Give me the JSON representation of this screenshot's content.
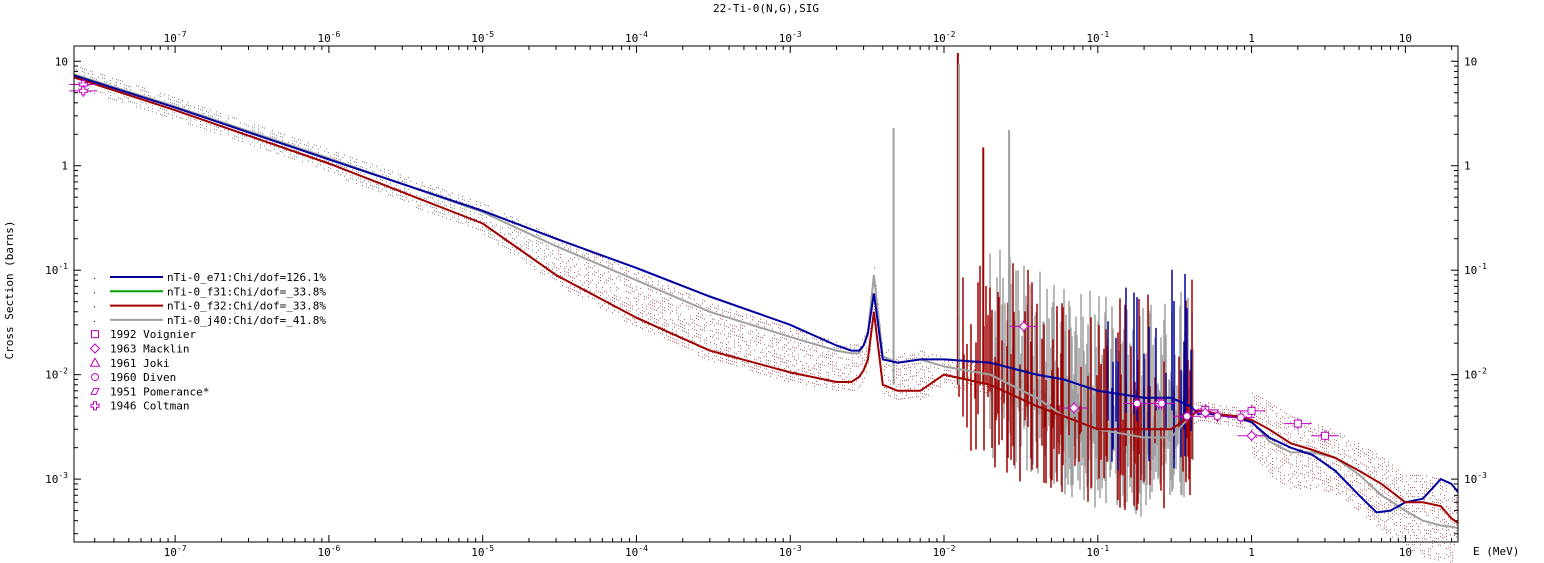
{
  "chart_data": {
    "type": "line",
    "title": "22-Ti-0(N,G),SIG",
    "xlabel": "E (MeV)",
    "ylabel": "Cross Section (barns)",
    "xscale": "log",
    "yscale": "log",
    "xlim": [
      2.2e-08,
      22
    ],
    "ylim": [
      0.00025,
      14
    ],
    "grid": false,
    "legend_position": "left-middle",
    "x_ticks": [
      {
        "value": 1e-07,
        "base": "10",
        "exp": "-7"
      },
      {
        "value": 1e-06,
        "base": "10",
        "exp": "-6"
      },
      {
        "value": 1e-05,
        "base": "10",
        "exp": "-5"
      },
      {
        "value": 0.0001,
        "base": "10",
        "exp": "-4"
      },
      {
        "value": 0.001,
        "base": "10",
        "exp": "-3"
      },
      {
        "value": 0.01,
        "base": "10",
        "exp": "-2"
      },
      {
        "value": 0.1,
        "base": "10",
        "exp": "-1"
      },
      {
        "value": 1,
        "base": "1",
        "exp": ""
      },
      {
        "value": 10,
        "base": "10",
        "exp": ""
      }
    ],
    "y_ticks": [
      {
        "value": 10,
        "base": "10",
        "exp": ""
      },
      {
        "value": 1,
        "base": "1",
        "exp": ""
      },
      {
        "value": 0.1,
        "base": "10",
        "exp": "-1"
      },
      {
        "value": 0.01,
        "base": "10",
        "exp": "-2"
      },
      {
        "value": 0.001,
        "base": "10",
        "exp": "-3"
      }
    ],
    "series": [
      {
        "name": "nTi-0_e71:Chi/dof=126.1%",
        "color": "#0000a0",
        "x": [
          2.2e-08,
          1e-07,
          1e-06,
          1e-05,
          3e-05,
          0.0001,
          0.0003,
          0.001,
          0.002,
          0.0025,
          0.0028,
          0.003,
          0.0032,
          0.0035,
          0.004,
          0.005,
          0.007,
          0.01,
          0.02,
          0.04,
          0.06,
          0.1,
          0.2,
          0.3,
          0.4,
          0.45,
          0.5,
          0.6,
          0.8,
          1.0,
          1.3,
          1.8,
          2.5,
          3.5,
          5,
          6.5,
          8,
          10,
          13,
          17,
          20,
          22
        ],
        "y": [
          7.3,
          3.6,
          1.15,
          0.37,
          0.2,
          0.105,
          0.056,
          0.03,
          0.019,
          0.017,
          0.017,
          0.019,
          0.025,
          0.06,
          0.014,
          0.013,
          0.014,
          0.014,
          0.013,
          0.01,
          0.009,
          0.007,
          0.006,
          0.006,
          0.005,
          0.0042,
          0.0043,
          0.0041,
          0.0039,
          0.0035,
          0.0025,
          0.002,
          0.0017,
          0.0012,
          0.0007,
          0.00048,
          0.0005,
          0.0006,
          0.00065,
          0.001,
          0.0009,
          0.00075
        ]
      },
      {
        "name": "nTi-0_f31:Chi/dof=_33.8%",
        "color": "#00a000",
        "x": [],
        "y": []
      },
      {
        "name": "nTi-0_f32:Chi/dof=_33.8%",
        "color": "#a00000",
        "x": [
          2.2e-08,
          1e-07,
          1e-06,
          1e-05,
          3e-05,
          0.0001,
          0.0003,
          0.001,
          0.002,
          0.0025,
          0.0028,
          0.003,
          0.0032,
          0.0035,
          0.004,
          0.005,
          0.007,
          0.01,
          0.02,
          0.04,
          0.06,
          0.1,
          0.2,
          0.3,
          0.4,
          0.45,
          0.5,
          0.6,
          0.8,
          1.0,
          1.3,
          1.8,
          2.5,
          3.5,
          5,
          7,
          10,
          13,
          17,
          20,
          22
        ],
        "y": [
          7.0,
          3.4,
          1.05,
          0.28,
          0.09,
          0.035,
          0.017,
          0.0105,
          0.0085,
          0.0085,
          0.0095,
          0.011,
          0.014,
          0.04,
          0.008,
          0.007,
          0.007,
          0.01,
          0.008,
          0.005,
          0.004,
          0.003,
          0.003,
          0.003,
          0.004,
          0.0045,
          0.0045,
          0.0042,
          0.004,
          0.0037,
          0.003,
          0.0022,
          0.0019,
          0.0016,
          0.0012,
          0.0009,
          0.0006,
          0.0006,
          0.00055,
          0.00042,
          0.00038
        ]
      },
      {
        "name": "nTi-0_j40:Chi/dof=_41.8%",
        "color": "#a0a0a0",
        "x": [
          2.2e-08,
          1e-07,
          1e-06,
          1e-05,
          3e-05,
          0.0001,
          0.0003,
          0.001,
          0.002,
          0.0025,
          0.0028,
          0.003,
          0.0032,
          0.0035,
          0.004,
          0.005,
          0.007,
          0.01,
          0.02,
          0.04,
          0.06,
          0.1,
          0.2,
          0.3,
          0.4,
          0.45,
          0.5,
          0.6,
          0.8,
          1.0,
          1.3,
          1.8,
          2.5,
          3.5,
          5,
          7,
          10,
          13,
          17,
          20,
          22
        ],
        "y": [
          7.5,
          3.7,
          1.18,
          0.36,
          0.17,
          0.08,
          0.04,
          0.023,
          0.017,
          0.016,
          0.016,
          0.019,
          0.025,
          0.09,
          0.015,
          0.013,
          0.014,
          0.012,
          0.01,
          0.006,
          0.004,
          0.003,
          0.0025,
          0.0025,
          0.004,
          0.0045,
          0.0044,
          0.0042,
          0.004,
          0.0036,
          0.0023,
          0.0018,
          0.0018,
          0.0016,
          0.0011,
          0.0007,
          0.0005,
          0.0004,
          0.00036,
          0.00035,
          0.00034
        ]
      }
    ],
    "experimental": [
      {
        "name": "1992 Voignier",
        "marker": "square",
        "x": [
          0.5,
          1.0,
          2.0,
          3.0
        ],
        "y": [
          0.0046,
          0.0045,
          0.0034,
          0.0026
        ]
      },
      {
        "name": "1963 Macklin",
        "marker": "diamond",
        "x": [
          0.033,
          0.07,
          0.25,
          0.5,
          1.0
        ],
        "y": [
          0.029,
          0.0048,
          0.0053,
          0.0043,
          0.0026
        ]
      },
      {
        "name": "1961 Joki",
        "marker": "triangle",
        "x": [],
        "y": []
      },
      {
        "name": "1960 Diven",
        "marker": "circle",
        "x": [
          0.18,
          0.26,
          0.38,
          0.6,
          0.85
        ],
        "y": [
          0.0053,
          0.0053,
          0.004,
          0.004,
          0.0039
        ]
      },
      {
        "name": "1951 Pomerance*",
        "marker": "slash",
        "x": [],
        "y": []
      },
      {
        "name": "1946 Coltman",
        "marker": "cross",
        "x": [
          2.53e-08,
          2.53e-08
        ],
        "y": [
          6.0,
          5.2
        ]
      }
    ]
  }
}
